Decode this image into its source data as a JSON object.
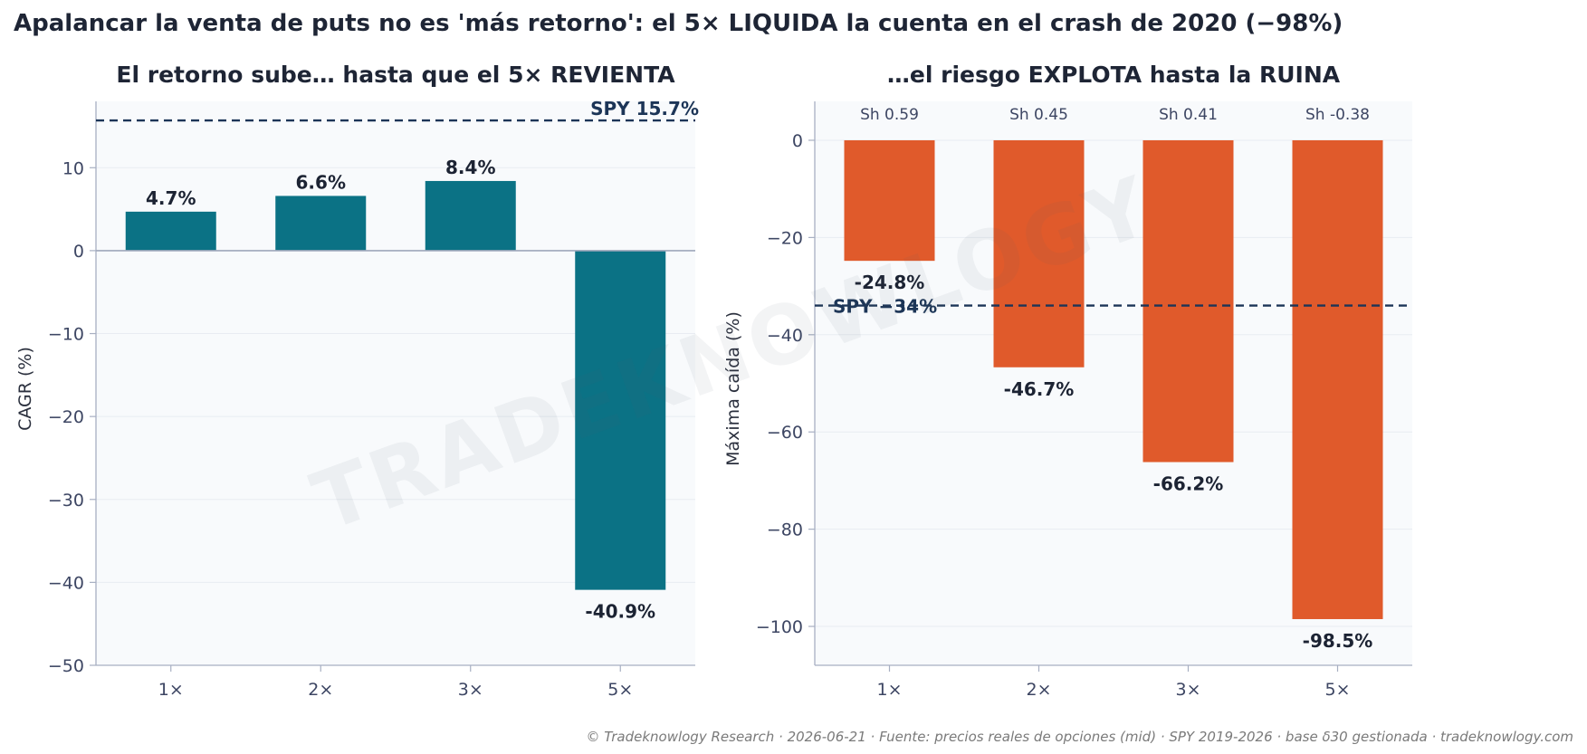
{
  "suptitle": "Apalancar la venta de puts no es 'más retorno': el 5× LIQUIDA la cuenta en el crash de 2020 (−98%)",
  "footer": "© Tradeknowlogy Research   ·   2026-06-21   ·   Fuente: precios reales de opciones (mid) · SPY 2019-2026 · base δ30 gestionada   ·   tradeknowlogy.com",
  "watermark": "TRADEKNOWLOGY",
  "colors": {
    "cagr_bar": "#0b7285",
    "dd_bar": "#e05a2b",
    "ref_line": "#1c3557",
    "plot_bg": "#f8fafc",
    "axis": "#a7afc2"
  },
  "chart_data": [
    {
      "type": "bar",
      "title": "El retorno sube… hasta que el 5× REVIENTA",
      "ylabel": "CAGR (%)",
      "categories": [
        "1×",
        "2×",
        "3×",
        "5×"
      ],
      "values": [
        4.7,
        6.6,
        8.4,
        -40.9
      ],
      "value_labels": [
        "4.7%",
        "6.6%",
        "8.4%",
        "-40.9%"
      ],
      "ylim": [
        -50,
        18
      ],
      "yticks": [
        10,
        0,
        -10,
        -20,
        -30,
        -40,
        -50
      ],
      "ytick_labels": [
        "10",
        "0",
        "−10",
        "−20",
        "−30",
        "−40",
        "−50"
      ],
      "reference_line": {
        "value": 15.7,
        "label": "SPY 15.7%"
      },
      "zero_line": true,
      "grid": true
    },
    {
      "type": "bar",
      "title": "…el riesgo EXPLOTA hasta la RUINA",
      "ylabel": "Máxima caída (%)",
      "categories": [
        "1×",
        "2×",
        "3×",
        "5×"
      ],
      "values": [
        -24.8,
        -46.7,
        -66.2,
        -98.5
      ],
      "value_labels": [
        "-24.8%",
        "-46.7%",
        "-66.2%",
        "-98.5%"
      ],
      "sharpe_labels": [
        "Sh 0.59",
        "Sh 0.45",
        "Sh 0.41",
        "Sh -0.38"
      ],
      "ylim": [
        -108,
        8
      ],
      "yticks": [
        0,
        -20,
        -40,
        -60,
        -80,
        -100
      ],
      "ytick_labels": [
        "0",
        "−20",
        "−40",
        "−60",
        "−80",
        "−100"
      ],
      "reference_line": {
        "value": -34,
        "label": "SPY −34%"
      },
      "grid": true
    }
  ]
}
